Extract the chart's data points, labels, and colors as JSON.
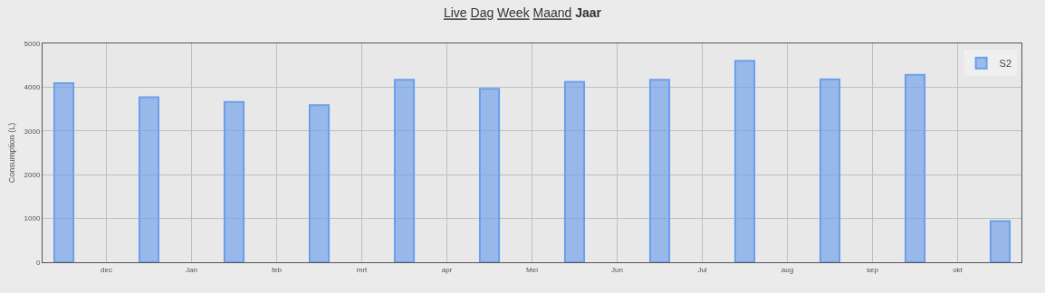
{
  "chart_data": {
    "type": "bar",
    "title": "Live Dag Week Maand Jaar",
    "ylabel": "Consumption (L)",
    "categories": [
      null,
      "dec",
      null,
      "Jan",
      null,
      "feb",
      null,
      "mrt",
      null,
      "apr",
      null,
      "Mei",
      null,
      "Jun",
      null,
      "Jul",
      null,
      "aug",
      null,
      "sep",
      null,
      "okt",
      null
    ],
    "series": [
      {
        "name": "S2",
        "color": "#6d9eeb",
        "values": [
          4090,
          null,
          3770,
          null,
          3660,
          null,
          3590,
          null,
          4170,
          null,
          3960,
          null,
          4120,
          null,
          4170,
          null,
          4600,
          null,
          4180,
          null,
          4280,
          null,
          940
        ]
      }
    ],
    "ylim": [
      0,
      5000
    ],
    "yticks": [
      0,
      1000,
      2000,
      3000,
      4000,
      5000
    ],
    "grid": true,
    "legend": "top right"
  }
}
